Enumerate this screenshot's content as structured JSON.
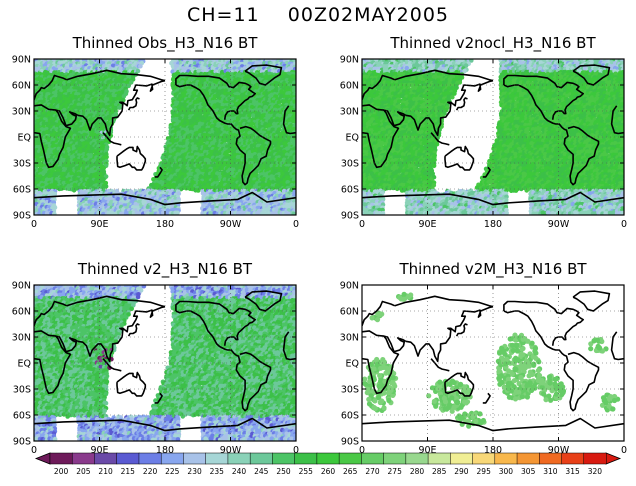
{
  "suptitle": "CH=11    00Z02MAY2005",
  "chart_data": [
    {
      "type": "heatmap",
      "title": "Thinned Obs_H3_N16 BT",
      "x_tick_labels": [
        "0",
        "90E",
        "180",
        "90W",
        "0"
      ],
      "y_tick_labels": [
        "90N",
        "60N",
        "30N",
        "EQ",
        "30S",
        "60S",
        "90S"
      ],
      "xlim_deg": [
        0,
        360
      ],
      "ylim_deg": [
        -90,
        90
      ],
      "coverage": "dense swaths, gap over western Pacific",
      "dominant_value_K": 255
    },
    {
      "type": "heatmap",
      "title": "Thinned v2nocl_H3_N16 BT",
      "x_tick_labels": [
        "0",
        "90E",
        "180",
        "90W",
        "0"
      ],
      "y_tick_labels": [
        "90N",
        "60N",
        "30N",
        "EQ",
        "30S",
        "60S",
        "90S"
      ],
      "xlim_deg": [
        0,
        360
      ],
      "ylim_deg": [
        -90,
        90
      ],
      "coverage": "dense swaths, gap over western Pacific",
      "dominant_value_K": 260
    },
    {
      "type": "heatmap",
      "title": "Thinned v2_H3_N16 BT",
      "x_tick_labels": [
        "0",
        "90E",
        "180",
        "90W",
        "0"
      ],
      "y_tick_labels": [
        "90N",
        "60N",
        "30N",
        "EQ",
        "30S",
        "60S",
        "90S"
      ],
      "xlim_deg": [
        0,
        360
      ],
      "ylim_deg": [
        -90,
        90
      ],
      "coverage": "dense swaths, gap over western Pacific",
      "dominant_value_K": 250
    },
    {
      "type": "heatmap",
      "title": "Thinned v2M_H3_N16 BT",
      "x_tick_labels": [
        "0",
        "90E",
        "180",
        "90W",
        "0"
      ],
      "y_tick_labels": [
        "90N",
        "60N",
        "30N",
        "EQ",
        "30S",
        "60S",
        "90S"
      ],
      "xlim_deg": [
        0,
        360
      ],
      "ylim_deg": [
        -90,
        90
      ],
      "coverage": "sparse patches",
      "dominant_value_K": 270
    }
  ],
  "colorbar": {
    "ticks": [
      "200",
      "205",
      "210",
      "215",
      "220",
      "225",
      "230",
      "235",
      "240",
      "245",
      "250",
      "255",
      "260",
      "265",
      "270",
      "275",
      "280",
      "285",
      "290",
      "295",
      "300",
      "305",
      "310",
      "315",
      "320"
    ],
    "colors": [
      "#6e1a5a",
      "#8a3a8c",
      "#6a4aa8",
      "#5a5ad2",
      "#6c7ee6",
      "#88a6ee",
      "#a8c2e8",
      "#a6d6d6",
      "#8ad2b8",
      "#6cc89a",
      "#4cc466",
      "#3cc048",
      "#3cc83c",
      "#4ac846",
      "#66cc66",
      "#7ed27a",
      "#98d88e",
      "#c8e89c",
      "#f0ee94",
      "#f8d878",
      "#f8b84c",
      "#f49634",
      "#f06a22",
      "#e84018",
      "#d81a10"
    ]
  }
}
